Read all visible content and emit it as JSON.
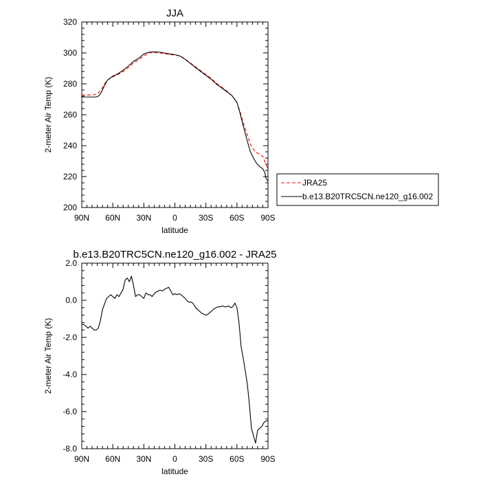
{
  "chart_data": [
    {
      "type": "line",
      "title": "JJA",
      "xlabel": "latitude",
      "ylabel": "2-meter Air Temp (K)",
      "xlim": [
        90,
        -90
      ],
      "ylim": [
        200,
        320
      ],
      "x_ticks": [
        {
          "value": 90,
          "label": "90N"
        },
        {
          "value": 60,
          "label": "60N"
        },
        {
          "value": 30,
          "label": "30N"
        },
        {
          "value": 0,
          "label": "0"
        },
        {
          "value": -30,
          "label": "30S"
        },
        {
          "value": -60,
          "label": "60S"
        },
        {
          "value": -90,
          "label": "90S"
        }
      ],
      "y_ticks": [
        200,
        220,
        240,
        260,
        280,
        300,
        320
      ],
      "legend_position": "right",
      "series": [
        {
          "name": "JRA25",
          "style": "dashed",
          "color": "#ff0000",
          "x": [
            90,
            85,
            80,
            75,
            72,
            70,
            68,
            65,
            60,
            55,
            50,
            45,
            40,
            35,
            30,
            25,
            20,
            15,
            10,
            5,
            0,
            -5,
            -10,
            -15,
            -20,
            -25,
            -30,
            -35,
            -40,
            -45,
            -50,
            -55,
            -60,
            -63,
            -66,
            -70,
            -73,
            -76,
            -79,
            -82,
            -85,
            -88,
            -90
          ],
          "values": [
            272.8,
            272.8,
            272.8,
            273.5,
            275.5,
            277.5,
            280.0,
            282.5,
            284.5,
            286.0,
            288.0,
            290.5,
            293.5,
            295.5,
            298.0,
            300.0,
            300.2,
            300.0,
            299.5,
            299.0,
            298.6,
            298.0,
            296.0,
            293.5,
            291.0,
            288.5,
            286.0,
            283.5,
            280.5,
            278.0,
            275.5,
            272.5,
            268.0,
            262.0,
            255.0,
            247.0,
            241.0,
            237.5,
            235.5,
            234.5,
            233.0,
            228.0,
            225.0
          ]
        },
        {
          "name": "b.e13.B20TRC5CN.ne120_g16.002",
          "style": "solid",
          "color": "#000000",
          "x": [
            90,
            85,
            80,
            76,
            74,
            72,
            70,
            68,
            65,
            60,
            55,
            50,
            45,
            40,
            35,
            30,
            25,
            20,
            15,
            10,
            5,
            0,
            -5,
            -10,
            -15,
            -20,
            -25,
            -30,
            -35,
            -40,
            -45,
            -50,
            -55,
            -60,
            -63,
            -66,
            -70,
            -73,
            -76,
            -79,
            -82,
            -85,
            -87,
            -88,
            -90
          ],
          "values": [
            271.5,
            271.5,
            271.5,
            271.5,
            272.0,
            273.5,
            276.0,
            279.0,
            282.5,
            285.0,
            286.5,
            288.8,
            291.5,
            294.5,
            296.5,
            299.3,
            300.5,
            300.7,
            300.5,
            300.0,
            299.3,
            298.9,
            298.0,
            295.8,
            293.2,
            290.5,
            288.0,
            285.5,
            283.0,
            280.0,
            277.5,
            275.0,
            272.5,
            268.0,
            261.0,
            253.0,
            243.0,
            236.0,
            232.0,
            228.5,
            226.5,
            225.0,
            222.5,
            219.0,
            217.0
          ]
        }
      ]
    },
    {
      "type": "line",
      "title": "b.e13.B20TRC5CN.ne120_g16.002 - JRA25",
      "xlabel": "latitude",
      "ylabel": "2-meter Air Temp (K)",
      "xlim": [
        90,
        -90
      ],
      "ylim": [
        -8.0,
        2.0
      ],
      "x_ticks": [
        {
          "value": 90,
          "label": "90N"
        },
        {
          "value": 60,
          "label": "60N"
        },
        {
          "value": 30,
          "label": "30N"
        },
        {
          "value": 0,
          "label": "0"
        },
        {
          "value": -30,
          "label": "30S"
        },
        {
          "value": -60,
          "label": "60S"
        },
        {
          "value": -90,
          "label": "90S"
        }
      ],
      "y_ticks": [
        {
          "value": 2.0,
          "label": "2.0"
        },
        {
          "value": 0.0,
          "label": "0.0"
        },
        {
          "value": -2.0,
          "label": "-2.0"
        },
        {
          "value": -4.0,
          "label": "-4.0"
        },
        {
          "value": -6.0,
          "label": "-6.0"
        },
        {
          "value": -8.0,
          "label": "-8.0"
        }
      ],
      "series": [
        {
          "color": "#000000",
          "style": "solid",
          "x": [
            90,
            88,
            86,
            84,
            82,
            80,
            78,
            76,
            74,
            72,
            70,
            68,
            66,
            64,
            62,
            60,
            58,
            56,
            54,
            52,
            50,
            48,
            46,
            44,
            42,
            40,
            38,
            36,
            34,
            32,
            30,
            28,
            26,
            24,
            22,
            20,
            18,
            16,
            14,
            12,
            10,
            8,
            6,
            4,
            2,
            0,
            -2,
            -4,
            -6,
            -8,
            -10,
            -12,
            -14,
            -16,
            -18,
            -20,
            -22,
            -24,
            -26,
            -28,
            -30,
            -32,
            -34,
            -36,
            -38,
            -40,
            -42,
            -44,
            -46,
            -48,
            -50,
            -52,
            -54,
            -56,
            -58,
            -60,
            -62,
            -64,
            -66,
            -68,
            -70,
            -72,
            -74,
            -76,
            -78,
            -80,
            -82,
            -84,
            -86,
            -88,
            -90
          ],
          "values": [
            -1.3,
            -1.3,
            -1.4,
            -1.5,
            -1.4,
            -1.5,
            -1.6,
            -1.6,
            -1.5,
            -1.1,
            -0.5,
            -0.2,
            0.1,
            0.2,
            0.3,
            0.2,
            0.1,
            0.3,
            0.2,
            0.4,
            0.6,
            1.1,
            1.2,
            1.0,
            1.3,
            0.8,
            0.2,
            0.3,
            0.3,
            0.2,
            0.1,
            0.4,
            0.3,
            0.3,
            0.2,
            0.35,
            0.45,
            0.5,
            0.55,
            0.5,
            0.6,
            0.65,
            0.7,
            0.5,
            0.3,
            0.35,
            0.3,
            0.35,
            0.3,
            0.2,
            0.1,
            -0.05,
            -0.1,
            -0.1,
            -0.2,
            -0.4,
            -0.5,
            -0.6,
            -0.7,
            -0.75,
            -0.8,
            -0.75,
            -0.65,
            -0.55,
            -0.45,
            -0.4,
            -0.35,
            -0.35,
            -0.3,
            -0.35,
            -0.35,
            -0.3,
            -0.4,
            -0.35,
            -0.15,
            -0.4,
            -1.2,
            -2.5,
            -3.1,
            -3.8,
            -4.5,
            -5.6,
            -6.9,
            -7.3,
            -7.7,
            -7.0,
            -6.9,
            -6.8,
            -6.6,
            -6.5,
            -6.5
          ]
        }
      ]
    }
  ]
}
